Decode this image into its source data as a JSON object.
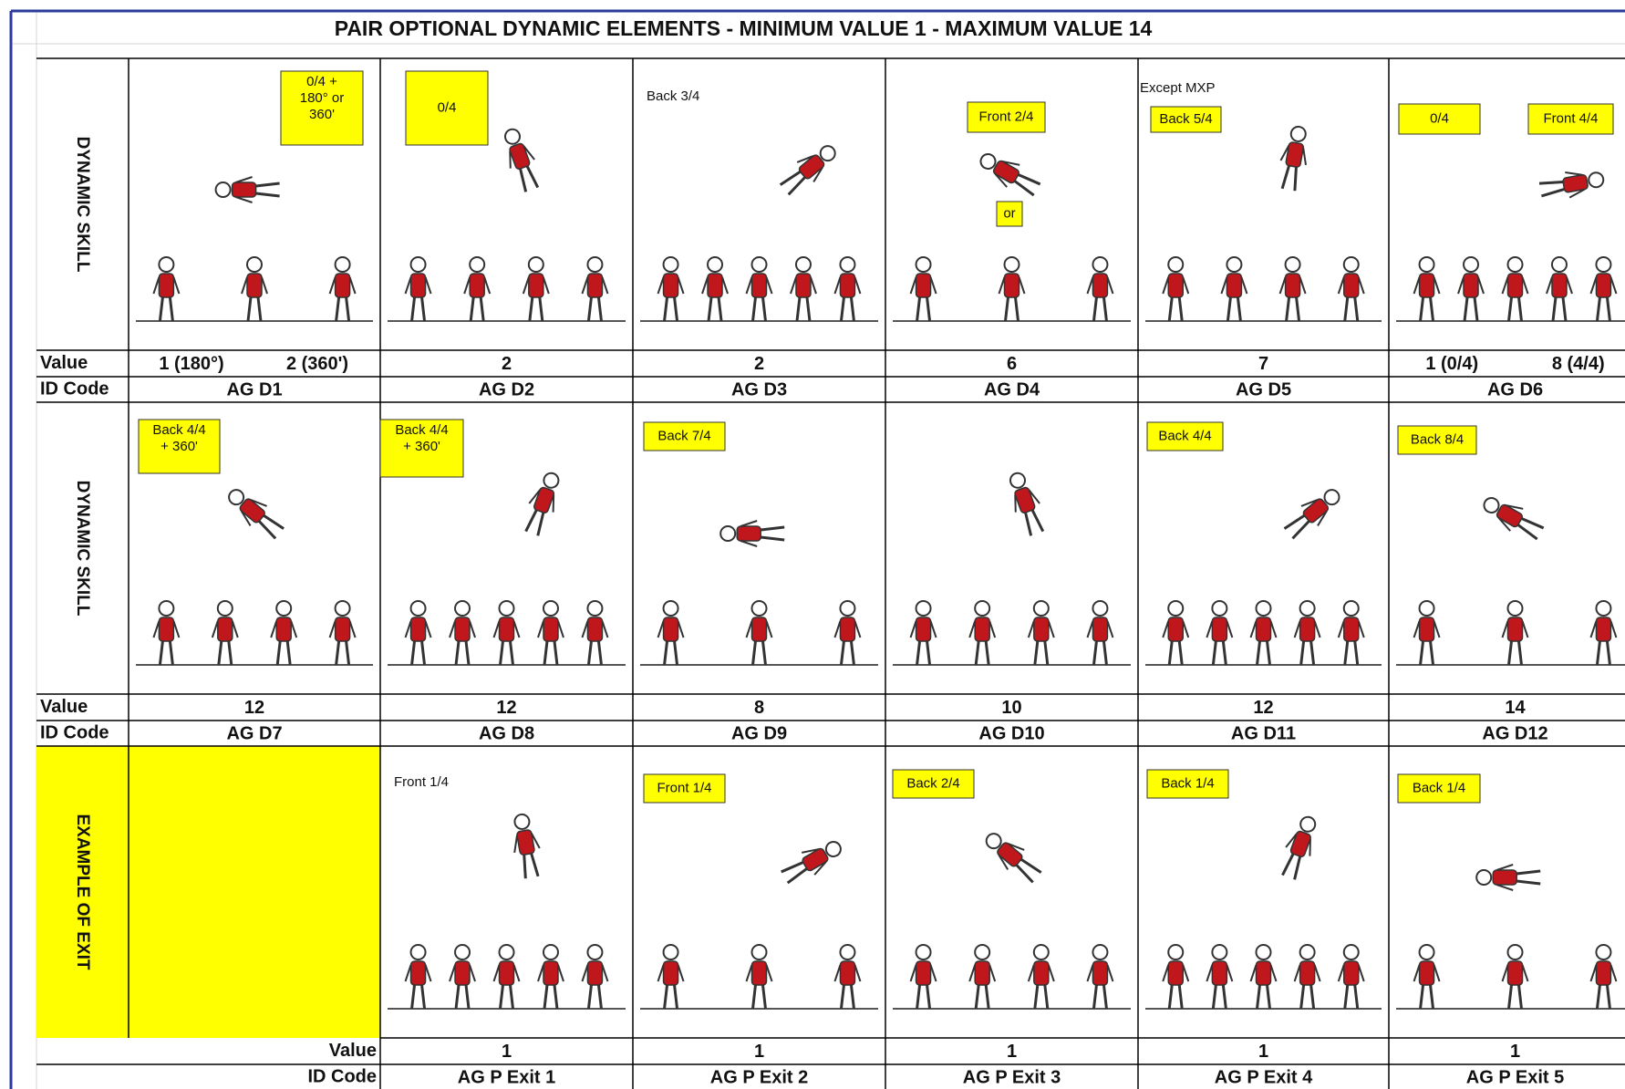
{
  "title": "PAIR OPTIONAL DYNAMIC ELEMENTS - MINIMUM VALUE 1 - MAXIMUM VALUE 14",
  "sections": [
    {
      "label": "DYNAMIC SKILL",
      "value_label": "Value",
      "id_label": "ID Code",
      "cells": [
        {
          "notes": [],
          "tags": [
            [
              "0/4 +",
              "180° or",
              "360'"
            ]
          ],
          "values": [
            "1 (180°)",
            "2 (360')"
          ],
          "id": "AG D1"
        },
        {
          "notes": [],
          "tags": [
            [
              "0/4"
            ]
          ],
          "values": [
            2
          ],
          "id": "AG D2"
        },
        {
          "notes": [
            "Back 3/4"
          ],
          "tags": [],
          "values": [
            2
          ],
          "id": "AG D3"
        },
        {
          "notes": [],
          "tags": [
            [
              "Front 2/4"
            ],
            [
              "or"
            ]
          ],
          "values": [
            6
          ],
          "id": "AG D4"
        },
        {
          "notes": [
            "Except MXP"
          ],
          "tags": [
            [
              "Back 5/4"
            ]
          ],
          "values": [
            7
          ],
          "id": "AG D5"
        },
        {
          "notes": [],
          "tags": [
            [
              "0/4"
            ],
            [
              "Front 4/4"
            ]
          ],
          "values": [
            "1 (0/4)",
            "8 (4/4)"
          ],
          "id": "AG D6"
        }
      ]
    },
    {
      "label": "DYNAMIC SKILL",
      "value_label": "Value",
      "id_label": "ID Code",
      "cells": [
        {
          "notes": [],
          "tags": [
            [
              "Back 4/4",
              "+ 360'"
            ]
          ],
          "values": [
            12
          ],
          "id": "AG D7"
        },
        {
          "notes": [],
          "tags": [
            [
              "Back 4/4",
              "+ 360'"
            ]
          ],
          "values": [
            12
          ],
          "id": "AG D8"
        },
        {
          "notes": [],
          "tags": [
            [
              "Back 7/4"
            ]
          ],
          "values": [
            8
          ],
          "id": "AG D9"
        },
        {
          "notes": [],
          "tags": [],
          "values": [
            10
          ],
          "id": "AG D10"
        },
        {
          "notes": [],
          "tags": [
            [
              "Back 4/4"
            ]
          ],
          "values": [
            12
          ],
          "id": "AG D11"
        },
        {
          "notes": [],
          "tags": [
            [
              "Back 8/4"
            ]
          ],
          "values": [
            14
          ],
          "id": "AG D12"
        }
      ]
    },
    {
      "label": "EXAMPLE OF EXIT",
      "value_label": "Value",
      "id_label": "ID Code",
      "cells": [
        {
          "notes": [
            "Front 1/4"
          ],
          "tags": [],
          "values": [
            1
          ],
          "id": "AG P Exit 1"
        },
        {
          "notes": [],
          "tags": [
            [
              "Front 1/4"
            ]
          ],
          "values": [
            1
          ],
          "id": "AG P Exit 2"
        },
        {
          "notes": [],
          "tags": [
            [
              "Back 2/4"
            ]
          ],
          "values": [
            1
          ],
          "id": "AG P Exit 3"
        },
        {
          "notes": [],
          "tags": [
            [
              "Back 1/4"
            ]
          ],
          "values": [
            1
          ],
          "id": "AG P Exit 4"
        },
        {
          "notes": [],
          "tags": [
            [
              "Back 1/4"
            ]
          ],
          "values": [
            1
          ],
          "id": "AG P Exit 5"
        }
      ]
    }
  ]
}
